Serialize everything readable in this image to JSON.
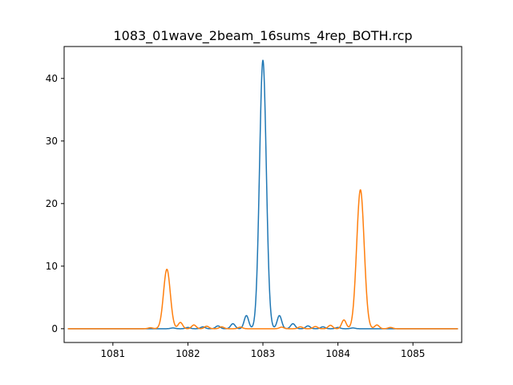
{
  "chart_data": {
    "type": "line",
    "title": "1083_01wave_2beam_16sums_4rep_BOTH.rcp",
    "xlabel": "",
    "ylabel": "",
    "xlim": [
      1080.35,
      1085.65
    ],
    "ylim": [
      -2.2,
      45.1
    ],
    "x_ticks": [
      1081,
      1082,
      1083,
      1084,
      1085
    ],
    "y_ticks": [
      0,
      10,
      20,
      30,
      40
    ],
    "grid": false,
    "legend": "none",
    "x_range": [
      1080.4,
      1085.6
    ],
    "series": [
      {
        "color": "#1f77b4",
        "peaks": [
          {
            "x": 1083.0,
            "y": 42.9,
            "width": 0.045
          },
          {
            "x": 1082.78,
            "y": 2.1,
            "width": 0.03
          },
          {
            "x": 1083.22,
            "y": 2.1,
            "width": 0.03
          },
          {
            "x": 1082.6,
            "y": 0.8,
            "width": 0.03
          },
          {
            "x": 1083.4,
            "y": 0.8,
            "width": 0.03
          },
          {
            "x": 1082.4,
            "y": 0.45,
            "width": 0.03
          },
          {
            "x": 1083.6,
            "y": 0.45,
            "width": 0.03
          },
          {
            "x": 1082.2,
            "y": 0.3,
            "width": 0.03
          },
          {
            "x": 1083.8,
            "y": 0.3,
            "width": 0.03
          },
          {
            "x": 1082.0,
            "y": 0.2,
            "width": 0.03
          },
          {
            "x": 1084.0,
            "y": 0.2,
            "width": 0.03
          },
          {
            "x": 1081.8,
            "y": 0.12,
            "width": 0.03
          },
          {
            "x": 1084.2,
            "y": 0.12,
            "width": 0.03
          }
        ]
      },
      {
        "color": "#ff7f0e",
        "peaks": [
          {
            "x": 1084.3,
            "y": 22.2,
            "width": 0.05
          },
          {
            "x": 1081.72,
            "y": 9.5,
            "width": 0.045
          },
          {
            "x": 1084.08,
            "y": 1.4,
            "width": 0.03
          },
          {
            "x": 1081.9,
            "y": 1.0,
            "width": 0.03
          },
          {
            "x": 1084.52,
            "y": 0.6,
            "width": 0.03
          },
          {
            "x": 1082.08,
            "y": 0.6,
            "width": 0.03
          },
          {
            "x": 1083.9,
            "y": 0.55,
            "width": 0.03
          },
          {
            "x": 1082.25,
            "y": 0.4,
            "width": 0.03
          },
          {
            "x": 1083.7,
            "y": 0.35,
            "width": 0.03
          },
          {
            "x": 1082.45,
            "y": 0.3,
            "width": 0.03
          },
          {
            "x": 1083.5,
            "y": 0.3,
            "width": 0.03
          },
          {
            "x": 1082.7,
            "y": 0.25,
            "width": 0.03
          },
          {
            "x": 1083.25,
            "y": 0.25,
            "width": 0.03
          },
          {
            "x": 1084.7,
            "y": 0.2,
            "width": 0.03
          },
          {
            "x": 1081.5,
            "y": 0.15,
            "width": 0.03
          }
        ]
      }
    ]
  }
}
